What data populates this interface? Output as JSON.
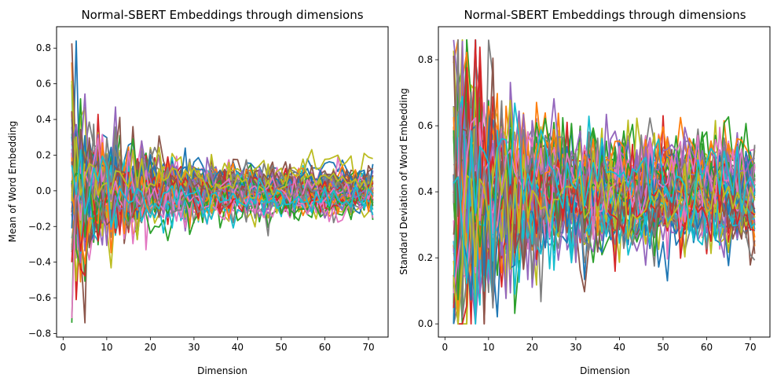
{
  "figure": {
    "background": "#ffffff"
  },
  "line_colors": [
    "#1f77b4",
    "#ff7f0e",
    "#2ca02c",
    "#d62728",
    "#9467bd",
    "#8c564b",
    "#e377c2",
    "#7f7f7f",
    "#bcbd22",
    "#17becf"
  ],
  "chart_data": [
    {
      "type": "line",
      "title": "Normal-SBERT Embeddings through dimensions",
      "xlabel": "Dimension",
      "ylabel": "Mean of Word Embedding",
      "xlim": [
        -1.5,
        74.5
      ],
      "ylim": [
        -0.82,
        0.92
      ],
      "xticks": [
        0,
        10,
        20,
        30,
        40,
        50,
        60,
        70
      ],
      "xtick_labels": [
        "0",
        "10",
        "20",
        "30",
        "40",
        "50",
        "60",
        "70"
      ],
      "yticks": [
        -0.8,
        -0.6,
        -0.4,
        -0.2,
        0.0,
        0.2,
        0.4,
        0.6,
        0.8
      ],
      "ytick_labels": [
        "−0.8",
        "−0.6",
        "−0.4",
        "−0.2",
        "0.0",
        "0.2",
        "0.4",
        "0.6",
        "0.8"
      ],
      "grid": false,
      "legend": "none",
      "series_count": 60,
      "x_range": [
        2,
        71
      ],
      "envelope_description_values": {
        "center": 0.0,
        "early_amplitude": 0.55,
        "late_amplitude": 0.1
      },
      "notable_points": [
        {
          "x": 3,
          "y": 0.84
        },
        {
          "x": 2,
          "y": 0.72
        },
        {
          "x": 2,
          "y": -0.74
        },
        {
          "x": 3,
          "y": -0.61
        },
        {
          "x": 12,
          "y": 0.47
        },
        {
          "x": 16,
          "y": 0.36
        },
        {
          "x": 19,
          "y": -0.33
        }
      ]
    },
    {
      "type": "line",
      "title": "Normal-SBERT Embeddings through dimensions",
      "xlabel": "Dimension",
      "ylabel": "Standard Deviation of Word Embedding",
      "xlim": [
        -1.5,
        74.5
      ],
      "ylim": [
        -0.04,
        0.9
      ],
      "xticks": [
        0,
        10,
        20,
        30,
        40,
        50,
        60,
        70
      ],
      "xtick_labels": [
        "0",
        "10",
        "20",
        "30",
        "40",
        "50",
        "60",
        "70"
      ],
      "yticks": [
        0.0,
        0.2,
        0.4,
        0.6,
        0.8
      ],
      "ytick_labels": [
        "0.0",
        "0.2",
        "0.4",
        "0.6",
        "0.8"
      ],
      "grid": false,
      "legend": "none",
      "series_count": 60,
      "x_range": [
        2,
        71
      ],
      "envelope_description_values": {
        "center": 0.38,
        "early_min": 0.0,
        "late_band": [
          0.25,
          0.55
        ]
      },
      "notable_points": [
        {
          "x": 7,
          "y": 0.86
        },
        {
          "x": 2,
          "y": 0.79
        },
        {
          "x": 4,
          "y": 0.78
        },
        {
          "x": 2,
          "y": 0.0
        },
        {
          "x": 3,
          "y": 0.02
        },
        {
          "x": 25,
          "y": 0.61
        },
        {
          "x": 46,
          "y": 0.57
        }
      ]
    }
  ]
}
